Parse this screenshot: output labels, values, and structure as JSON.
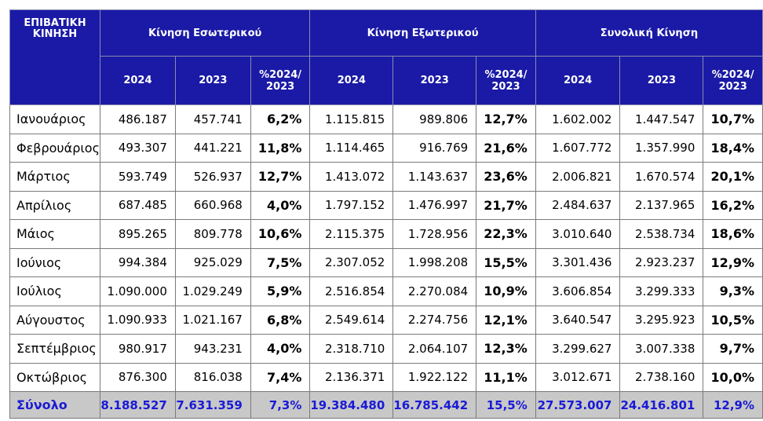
{
  "header": {
    "title": "ΕΠΙΒΑΤΙΚΗ ΚΙΝΗΣΗ",
    "groups": [
      "Κίνηση Εσωτερικού",
      "Κίνηση Εξωτερικού",
      "Συνολική Κίνηση"
    ],
    "subheaders": [
      "2024",
      "2023",
      "%2024/ 2023"
    ]
  },
  "rows": [
    {
      "month": "Ιανουάριος",
      "cells": [
        "486.187",
        "457.741",
        "6,2%",
        "1.115.815",
        "989.806",
        "12,7%",
        "1.602.002",
        "1.447.547",
        "10,7%"
      ]
    },
    {
      "month": "Φεβρουάριος",
      "cells": [
        "493.307",
        "441.221",
        "11,8%",
        "1.114.465",
        "916.769",
        "21,6%",
        "1.607.772",
        "1.357.990",
        "18,4%"
      ]
    },
    {
      "month": "Μάρτιος",
      "cells": [
        "593.749",
        "526.937",
        "12,7%",
        "1.413.072",
        "1.143.637",
        "23,6%",
        "2.006.821",
        "1.670.574",
        "20,1%"
      ]
    },
    {
      "month": "Απρίλιος",
      "cells": [
        "687.485",
        "660.968",
        "4,0%",
        "1.797.152",
        "1.476.997",
        "21,7%",
        "2.484.637",
        "2.137.965",
        "16,2%"
      ]
    },
    {
      "month": "Μάιος",
      "cells": [
        "895.265",
        "809.778",
        "10,6%",
        "2.115.375",
        "1.728.956",
        "22,3%",
        "3.010.640",
        "2.538.734",
        "18,6%"
      ]
    },
    {
      "month": "Ιούνιος",
      "cells": [
        "994.384",
        "925.029",
        "7,5%",
        "2.307.052",
        "1.998.208",
        "15,5%",
        "3.301.436",
        "2.923.237",
        "12,9%"
      ]
    },
    {
      "month": "Ιούλιος",
      "cells": [
        "1.090.000",
        "1.029.249",
        "5,9%",
        "2.516.854",
        "2.270.084",
        "10,9%",
        "3.606.854",
        "3.299.333",
        "9,3%"
      ]
    },
    {
      "month": "Αύγουστος",
      "cells": [
        "1.090.933",
        "1.021.167",
        "6,8%",
        "2.549.614",
        "2.274.756",
        "12,1%",
        "3.640.547",
        "3.295.923",
        "10,5%"
      ]
    },
    {
      "month": "Σεπτέμβριος",
      "cells": [
        "980.917",
        "943.231",
        "4,0%",
        "2.318.710",
        "2.064.107",
        "12,3%",
        "3.299.627",
        "3.007.338",
        "9,7%"
      ]
    },
    {
      "month": "Οκτώβριος",
      "cells": [
        "876.300",
        "816.038",
        "7,4%",
        "2.136.371",
        "1.922.122",
        "11,1%",
        "3.012.671",
        "2.738.160",
        "10,0%"
      ]
    }
  ],
  "total": {
    "label": "Σύνολο",
    "cells": [
      "8.188.527",
      "7.631.359",
      "7,3%",
      "19.384.480",
      "16.785.442",
      "15,5%",
      "27.573.007",
      "24.416.801",
      "12,9%"
    ]
  },
  "colors": {
    "header_bg": "#1a1aa6",
    "header_text": "#ffffff",
    "total_bg": "#c8c8c8",
    "total_text": "#1a1ad6"
  }
}
